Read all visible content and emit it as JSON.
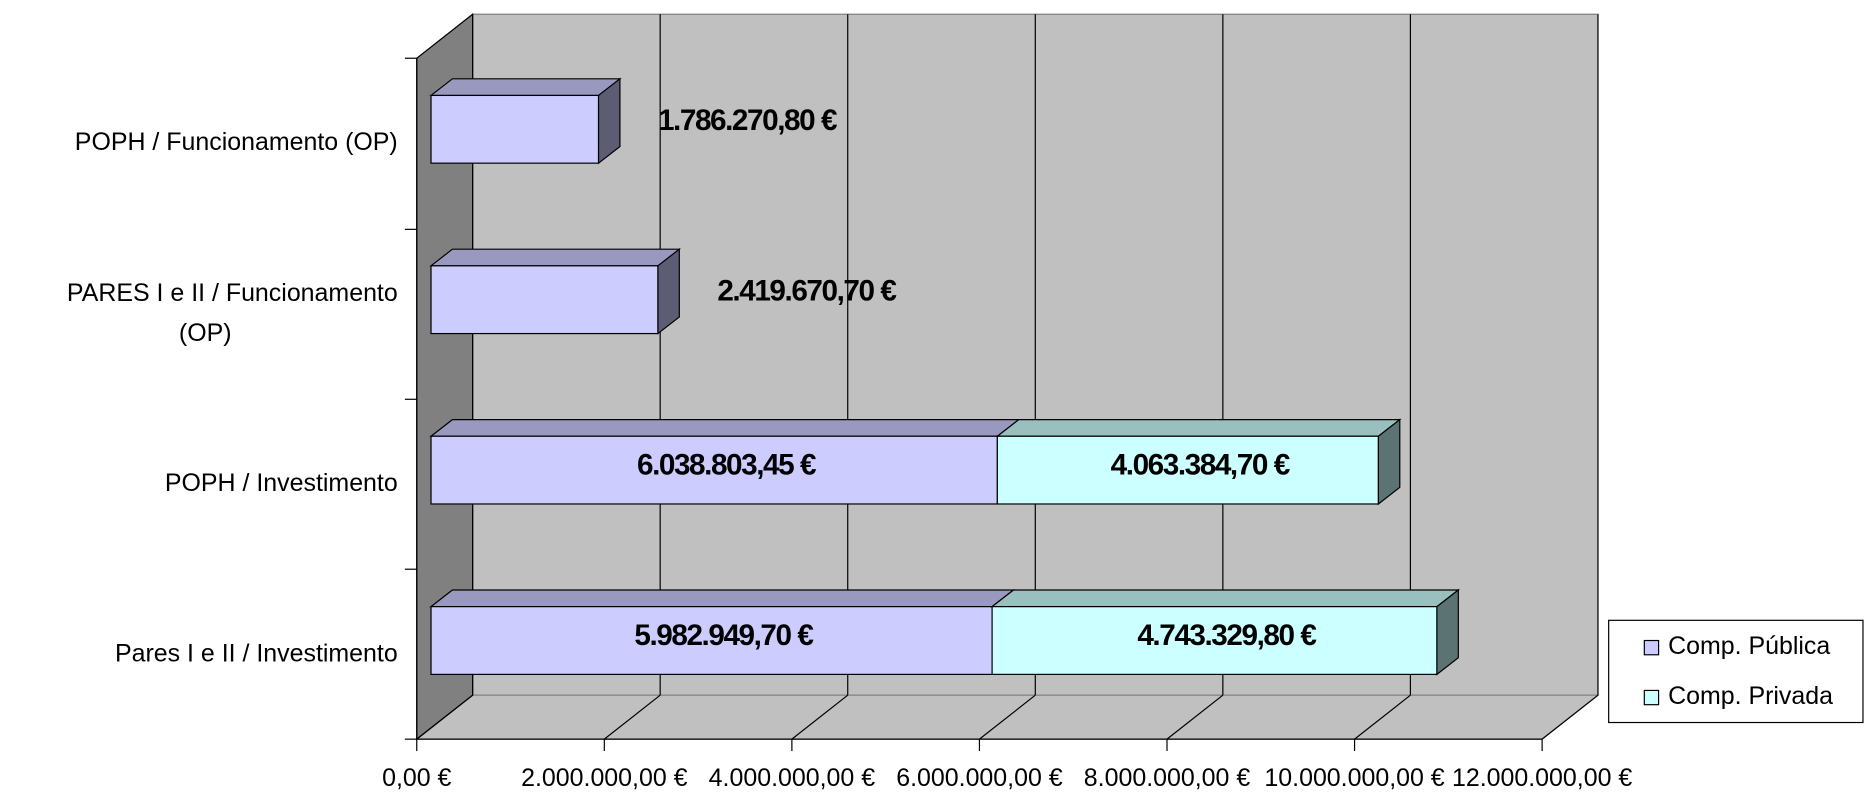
{
  "chart_data": {
    "type": "bar",
    "orientation": "horizontal",
    "stacked": true,
    "three_d": true,
    "categories": [
      "Pares I e II / Investimento",
      "POPH / Investimento",
      "PARES I e II / Funcionamento (OP)",
      "POPH / Funcionamento (OP)"
    ],
    "series": [
      {
        "name": "Comp. Pública",
        "color": "#ccccff",
        "values": [
          5982949.7,
          6038803.45,
          2419670.7,
          1786270.8
        ],
        "value_labels": [
          "5.982.949,70 €",
          "6.038.803,45 €",
          "2.419.670,70 €",
          "1.786.270,80 €"
        ]
      },
      {
        "name": "Comp. Privada",
        "color": "#ccffff",
        "values": [
          4743329.8,
          4063384.7,
          null,
          null
        ],
        "value_labels": [
          "4.743.329,80 €",
          "4.063.384,70 €",
          null,
          null
        ]
      }
    ],
    "xlim": [
      0,
      12000000
    ],
    "xticks": [
      {
        "value": 0,
        "label": "0,00 €"
      },
      {
        "value": 2000000,
        "label": "2.000.000,00 €"
      },
      {
        "value": 4000000,
        "label": "4.000.000,00 €"
      },
      {
        "value": 6000000,
        "label": "6.000.000,00 €"
      },
      {
        "value": 8000000,
        "label": "8.000.000,00 €"
      },
      {
        "value": 10000000,
        "label": "10.000.000,00 €"
      },
      {
        "value": 12000000,
        "label": "12.000.000,00 €"
      }
    ],
    "grid": true,
    "legend": "right"
  }
}
